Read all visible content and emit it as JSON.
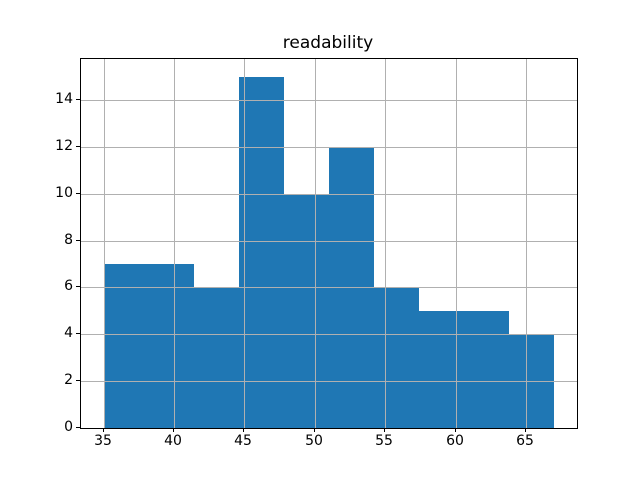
{
  "figure": {
    "background_color": "#ffffff",
    "text_color": "#000000"
  },
  "chart_data": {
    "type": "bar",
    "subtype": "histogram",
    "title": "readability",
    "xlabel": "",
    "ylabel": "",
    "bin_edges": [
      35.0,
      38.2,
      41.4,
      44.6,
      47.8,
      51.0,
      54.2,
      57.4,
      60.6,
      63.8,
      67.0
    ],
    "values": [
      7,
      7,
      6,
      15,
      10,
      12,
      6,
      5,
      5,
      4
    ],
    "x_ticks": [
      "35",
      "40",
      "45",
      "50",
      "55",
      "60",
      "65"
    ],
    "x_tick_values": [
      35,
      40,
      45,
      50,
      55,
      60,
      65
    ],
    "y_ticks": [
      "0",
      "2",
      "4",
      "6",
      "8",
      "10",
      "12",
      "14"
    ],
    "y_tick_values": [
      0,
      2,
      4,
      6,
      8,
      10,
      12,
      14
    ],
    "xlim": [
      33.4,
      68.6
    ],
    "ylim": [
      0,
      15.75
    ],
    "grid": true,
    "grid_above_bars": true,
    "legend": null,
    "bar_color": "#1f77b4",
    "grid_color": "#b0b0b0",
    "spine_color": "#000000"
  }
}
